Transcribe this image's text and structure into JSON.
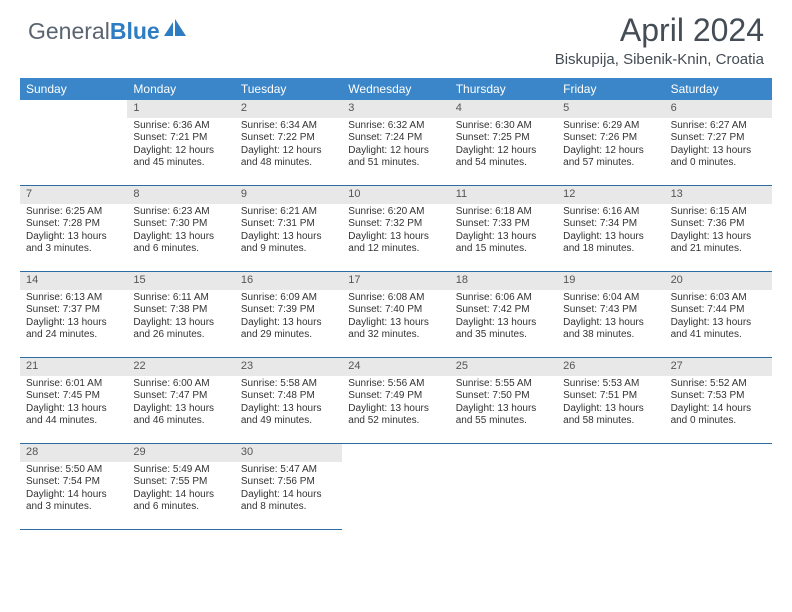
{
  "logo": {
    "text1": "General",
    "text2": "Blue"
  },
  "title": "April 2024",
  "location": "Biskupija, Sibenik-Knin, Croatia",
  "colors": {
    "header_bg": "#3a86c8",
    "header_text": "#ffffff",
    "daynum_bg": "#e8e8e8",
    "cell_border": "#2e6da4",
    "logo_gray": "#5a6470",
    "logo_blue": "#2e7cc2",
    "title_color": "#444c55"
  },
  "day_headers": [
    "Sunday",
    "Monday",
    "Tuesday",
    "Wednesday",
    "Thursday",
    "Friday",
    "Saturday"
  ],
  "weeks": [
    [
      {
        "n": "",
        "empty": true
      },
      {
        "n": "1",
        "sr": "Sunrise: 6:36 AM",
        "ss": "Sunset: 7:21 PM",
        "d1": "Daylight: 12 hours",
        "d2": "and 45 minutes."
      },
      {
        "n": "2",
        "sr": "Sunrise: 6:34 AM",
        "ss": "Sunset: 7:22 PM",
        "d1": "Daylight: 12 hours",
        "d2": "and 48 minutes."
      },
      {
        "n": "3",
        "sr": "Sunrise: 6:32 AM",
        "ss": "Sunset: 7:24 PM",
        "d1": "Daylight: 12 hours",
        "d2": "and 51 minutes."
      },
      {
        "n": "4",
        "sr": "Sunrise: 6:30 AM",
        "ss": "Sunset: 7:25 PM",
        "d1": "Daylight: 12 hours",
        "d2": "and 54 minutes."
      },
      {
        "n": "5",
        "sr": "Sunrise: 6:29 AM",
        "ss": "Sunset: 7:26 PM",
        "d1": "Daylight: 12 hours",
        "d2": "and 57 minutes."
      },
      {
        "n": "6",
        "sr": "Sunrise: 6:27 AM",
        "ss": "Sunset: 7:27 PM",
        "d1": "Daylight: 13 hours",
        "d2": "and 0 minutes."
      }
    ],
    [
      {
        "n": "7",
        "sr": "Sunrise: 6:25 AM",
        "ss": "Sunset: 7:28 PM",
        "d1": "Daylight: 13 hours",
        "d2": "and 3 minutes."
      },
      {
        "n": "8",
        "sr": "Sunrise: 6:23 AM",
        "ss": "Sunset: 7:30 PM",
        "d1": "Daylight: 13 hours",
        "d2": "and 6 minutes."
      },
      {
        "n": "9",
        "sr": "Sunrise: 6:21 AM",
        "ss": "Sunset: 7:31 PM",
        "d1": "Daylight: 13 hours",
        "d2": "and 9 minutes."
      },
      {
        "n": "10",
        "sr": "Sunrise: 6:20 AM",
        "ss": "Sunset: 7:32 PM",
        "d1": "Daylight: 13 hours",
        "d2": "and 12 minutes."
      },
      {
        "n": "11",
        "sr": "Sunrise: 6:18 AM",
        "ss": "Sunset: 7:33 PM",
        "d1": "Daylight: 13 hours",
        "d2": "and 15 minutes."
      },
      {
        "n": "12",
        "sr": "Sunrise: 6:16 AM",
        "ss": "Sunset: 7:34 PM",
        "d1": "Daylight: 13 hours",
        "d2": "and 18 minutes."
      },
      {
        "n": "13",
        "sr": "Sunrise: 6:15 AM",
        "ss": "Sunset: 7:36 PM",
        "d1": "Daylight: 13 hours",
        "d2": "and 21 minutes."
      }
    ],
    [
      {
        "n": "14",
        "sr": "Sunrise: 6:13 AM",
        "ss": "Sunset: 7:37 PM",
        "d1": "Daylight: 13 hours",
        "d2": "and 24 minutes."
      },
      {
        "n": "15",
        "sr": "Sunrise: 6:11 AM",
        "ss": "Sunset: 7:38 PM",
        "d1": "Daylight: 13 hours",
        "d2": "and 26 minutes."
      },
      {
        "n": "16",
        "sr": "Sunrise: 6:09 AM",
        "ss": "Sunset: 7:39 PM",
        "d1": "Daylight: 13 hours",
        "d2": "and 29 minutes."
      },
      {
        "n": "17",
        "sr": "Sunrise: 6:08 AM",
        "ss": "Sunset: 7:40 PM",
        "d1": "Daylight: 13 hours",
        "d2": "and 32 minutes."
      },
      {
        "n": "18",
        "sr": "Sunrise: 6:06 AM",
        "ss": "Sunset: 7:42 PM",
        "d1": "Daylight: 13 hours",
        "d2": "and 35 minutes."
      },
      {
        "n": "19",
        "sr": "Sunrise: 6:04 AM",
        "ss": "Sunset: 7:43 PM",
        "d1": "Daylight: 13 hours",
        "d2": "and 38 minutes."
      },
      {
        "n": "20",
        "sr": "Sunrise: 6:03 AM",
        "ss": "Sunset: 7:44 PM",
        "d1": "Daylight: 13 hours",
        "d2": "and 41 minutes."
      }
    ],
    [
      {
        "n": "21",
        "sr": "Sunrise: 6:01 AM",
        "ss": "Sunset: 7:45 PM",
        "d1": "Daylight: 13 hours",
        "d2": "and 44 minutes."
      },
      {
        "n": "22",
        "sr": "Sunrise: 6:00 AM",
        "ss": "Sunset: 7:47 PM",
        "d1": "Daylight: 13 hours",
        "d2": "and 46 minutes."
      },
      {
        "n": "23",
        "sr": "Sunrise: 5:58 AM",
        "ss": "Sunset: 7:48 PM",
        "d1": "Daylight: 13 hours",
        "d2": "and 49 minutes."
      },
      {
        "n": "24",
        "sr": "Sunrise: 5:56 AM",
        "ss": "Sunset: 7:49 PM",
        "d1": "Daylight: 13 hours",
        "d2": "and 52 minutes."
      },
      {
        "n": "25",
        "sr": "Sunrise: 5:55 AM",
        "ss": "Sunset: 7:50 PM",
        "d1": "Daylight: 13 hours",
        "d2": "and 55 minutes."
      },
      {
        "n": "26",
        "sr": "Sunrise: 5:53 AM",
        "ss": "Sunset: 7:51 PM",
        "d1": "Daylight: 13 hours",
        "d2": "and 58 minutes."
      },
      {
        "n": "27",
        "sr": "Sunrise: 5:52 AM",
        "ss": "Sunset: 7:53 PM",
        "d1": "Daylight: 14 hours",
        "d2": "and 0 minutes."
      }
    ],
    [
      {
        "n": "28",
        "sr": "Sunrise: 5:50 AM",
        "ss": "Sunset: 7:54 PM",
        "d1": "Daylight: 14 hours",
        "d2": "and 3 minutes."
      },
      {
        "n": "29",
        "sr": "Sunrise: 5:49 AM",
        "ss": "Sunset: 7:55 PM",
        "d1": "Daylight: 14 hours",
        "d2": "and 6 minutes."
      },
      {
        "n": "30",
        "sr": "Sunrise: 5:47 AM",
        "ss": "Sunset: 7:56 PM",
        "d1": "Daylight: 14 hours",
        "d2": "and 8 minutes."
      },
      {
        "n": "",
        "empty": true
      },
      {
        "n": "",
        "empty": true
      },
      {
        "n": "",
        "empty": true
      },
      {
        "n": "",
        "empty": true
      }
    ]
  ]
}
